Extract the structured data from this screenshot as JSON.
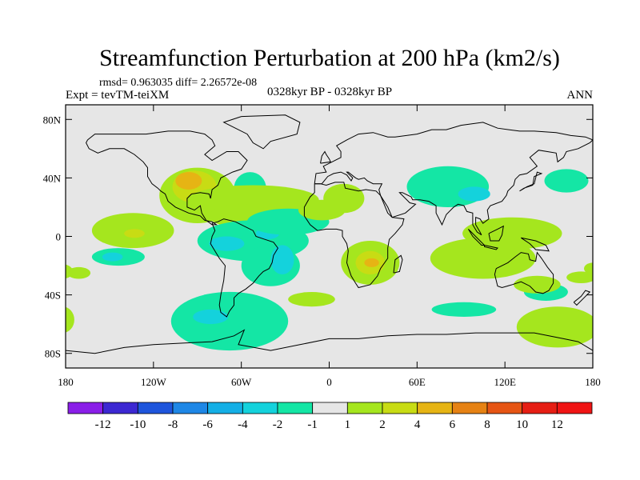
{
  "figure": {
    "title": "Streamfunction Perturbation at 200 hPa (km2/s)",
    "stats": "rmsd= 0.963035 diff= 2.26572e-08",
    "left_label": "Expt = tevTM-teiXM",
    "center_label": "0328kyr BP - 0328kyr BP",
    "right_label": "ANN"
  },
  "map": {
    "projection": "cylindrical-equidistant",
    "lon_range": [
      -180,
      180
    ],
    "lat_range": [
      -90,
      90
    ],
    "x_ticks": [
      {
        "value": -180,
        "label": "180"
      },
      {
        "value": -120,
        "label": "120W"
      },
      {
        "value": -60,
        "label": "60W"
      },
      {
        "value": 0,
        "label": "0"
      },
      {
        "value": 60,
        "label": "60E"
      },
      {
        "value": 120,
        "label": "120E"
      },
      {
        "value": 180,
        "label": "180"
      }
    ],
    "y_ticks": [
      {
        "value": 80,
        "label": "80N"
      },
      {
        "value": 40,
        "label": "40N"
      },
      {
        "value": 0,
        "label": "0"
      },
      {
        "value": -40,
        "label": "40S"
      },
      {
        "value": -80,
        "label": "80S"
      }
    ],
    "background_color": "#e6e6e6",
    "coastline_color": "#000000",
    "blobs": [
      {
        "lon": -90,
        "lat": 28,
        "rx": 26,
        "ry": 19,
        "level": 2
      },
      {
        "lon": -92,
        "lat": 34,
        "rx": 15,
        "ry": 11,
        "level": 4
      },
      {
        "lon": -96,
        "lat": 38,
        "rx": 9,
        "ry": 6,
        "level": 6
      },
      {
        "lon": -54,
        "lat": 33,
        "rx": 11,
        "ry": 11,
        "level": -1
      },
      {
        "lon": -52,
        "lat": 25,
        "rx": 45,
        "ry": 10,
        "level": 2
      },
      {
        "lon": -60,
        "lat": 14,
        "rx": 22,
        "ry": 8,
        "level": 2
      },
      {
        "lon": -134,
        "lat": 4,
        "rx": 28,
        "ry": 12,
        "level": 2
      },
      {
        "lon": -133,
        "lat": 2,
        "rx": 7,
        "ry": 3,
        "level": 4
      },
      {
        "lon": -144,
        "lat": -14,
        "rx": 18,
        "ry": 6,
        "level": -1
      },
      {
        "lon": -148,
        "lat": -14,
        "rx": 7,
        "ry": 3,
        "level": -2
      },
      {
        "lon": -171,
        "lat": -25,
        "rx": 8,
        "ry": 4,
        "level": 2
      },
      {
        "lon": -52,
        "lat": -3,
        "rx": 38,
        "ry": 14,
        "level": -1
      },
      {
        "lon": -40,
        "lat": -20,
        "rx": 20,
        "ry": 14,
        "level": -1
      },
      {
        "lon": -32,
        "lat": -16,
        "rx": 8,
        "ry": 10,
        "level": -2
      },
      {
        "lon": -70,
        "lat": -5,
        "rx": 12,
        "ry": 5,
        "level": -2
      },
      {
        "lon": -42,
        "lat": 2,
        "rx": 8,
        "ry": 4,
        "level": -2
      },
      {
        "lon": -28,
        "lat": 10,
        "rx": 28,
        "ry": 9,
        "level": -1
      },
      {
        "lon": -5,
        "lat": 18,
        "rx": 16,
        "ry": 7,
        "level": 2
      },
      {
        "lon": 10,
        "lat": 26,
        "rx": 14,
        "ry": 10,
        "level": 2
      },
      {
        "lon": 28,
        "lat": -18,
        "rx": 20,
        "ry": 15,
        "level": 2
      },
      {
        "lon": 28,
        "lat": -18,
        "rx": 10,
        "ry": 8,
        "level": 4
      },
      {
        "lon": 29,
        "lat": -18,
        "rx": 5,
        "ry": 3,
        "level": 6
      },
      {
        "lon": 81,
        "lat": 34,
        "rx": 28,
        "ry": 14,
        "level": -1
      },
      {
        "lon": 99,
        "lat": 29,
        "rx": 11,
        "ry": 5,
        "level": -2
      },
      {
        "lon": 162,
        "lat": 38,
        "rx": 15,
        "ry": 8,
        "level": -1
      },
      {
        "lon": 125,
        "lat": 2,
        "rx": 34,
        "ry": 11,
        "level": 2
      },
      {
        "lon": 105,
        "lat": -15,
        "rx": 36,
        "ry": 14,
        "level": 2
      },
      {
        "lon": 148,
        "lat": -38,
        "rx": 15,
        "ry": 6,
        "level": -1
      },
      {
        "lon": 142,
        "lat": -33,
        "rx": 16,
        "ry": 6,
        "level": 2
      },
      {
        "lon": 172,
        "lat": -28,
        "rx": 10,
        "ry": 4,
        "level": 2
      },
      {
        "lon": 156,
        "lat": -62,
        "rx": 28,
        "ry": 14,
        "level": 2
      },
      {
        "lon": -68,
        "lat": -58,
        "rx": 40,
        "ry": 20,
        "level": -1
      },
      {
        "lon": -81,
        "lat": -55,
        "rx": 12,
        "ry": 5,
        "level": -2
      },
      {
        "lon": 92,
        "lat": -50,
        "rx": 22,
        "ry": 5,
        "level": -1
      },
      {
        "lon": -12,
        "lat": -43,
        "rx": 16,
        "ry": 5,
        "level": 2
      },
      {
        "lon": -182,
        "lat": -57,
        "rx": 8,
        "ry": 9,
        "level": 2
      },
      {
        "lon": -182,
        "lat": -24,
        "rx": 7,
        "ry": 5,
        "level": 2
      },
      {
        "lon": 180,
        "lat": -22,
        "rx": 6,
        "ry": 4,
        "level": 2
      }
    ]
  },
  "colorbar": {
    "labels": [
      "-12",
      "-10",
      "-8",
      "-6",
      "-4",
      "-2",
      "-1",
      "1",
      "2",
      "4",
      "6",
      "8",
      "10",
      "12"
    ],
    "colors": [
      "#8a1ee8",
      "#3c28d2",
      "#1e55dc",
      "#1e87e6",
      "#14afe6",
      "#14d2dc",
      "#14e6a5",
      "#e6e6e6",
      "#a5e61e",
      "#c8dc14",
      "#e6b414",
      "#e68214",
      "#e65514",
      "#e61e14",
      "#f01414"
    ]
  }
}
